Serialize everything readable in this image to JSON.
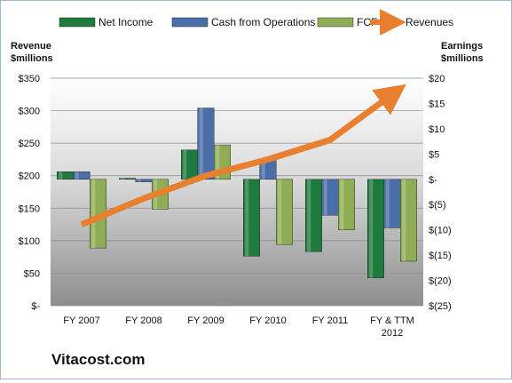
{
  "chart_data": {
    "type": "bar",
    "categories": [
      "FY 2007",
      "FY 2008",
      "FY 2009",
      "FY 2010",
      "FY 2011",
      "FY & TTM 2012"
    ],
    "series": [
      {
        "name": "Net Income",
        "axis": "right",
        "values": [
          1.5,
          0.2,
          5.8,
          -15.2,
          -14.3,
          -19.5
        ],
        "color": "#1f7a3e"
      },
      {
        "name": "Cash from Operations",
        "axis": "right",
        "values": [
          1.5,
          -0.5,
          14.1,
          3.9,
          -7.1,
          -9.6
        ],
        "color": "#4a6ea8"
      },
      {
        "name": "FCF",
        "axis": "right",
        "values": [
          -13.6,
          -5.9,
          6.8,
          -12.9,
          -10.0,
          -16.2
        ],
        "color": "#8fad55"
      },
      {
        "name": "Revenues",
        "axis": "left",
        "type": "line",
        "values": [
          125,
          165,
          200,
          225,
          255,
          325
        ],
        "color": "#e8802f"
      }
    ],
    "left_axis": {
      "label_line1": "Revenue",
      "label_line2": "$millions",
      "ylim": [
        0,
        350
      ],
      "ticks": [
        "$-",
        "$50",
        "$100",
        "$150",
        "$200",
        "$250",
        "$300",
        "$350"
      ]
    },
    "right_axis": {
      "label_line1": "Earnings",
      "label_line2": "$millions",
      "ylim": [
        -25,
        20
      ],
      "ticks": [
        "$(25)",
        "$(20)",
        "$(15)",
        "$(10)",
        "$(5)",
        "$-",
        "$5",
        "$10",
        "$15",
        "$20"
      ]
    },
    "category_labels": [
      [
        "FY 2007"
      ],
      [
        "FY 2008"
      ],
      [
        "FY 2009"
      ],
      [
        "FY 2010"
      ],
      [
        "FY 2011"
      ],
      [
        "FY & TTM",
        "2012"
      ]
    ],
    "legend": [
      "Net Income",
      "Cash from Operations",
      "FCF",
      "Revenues"
    ],
    "legend_position": "top",
    "grid": true
  },
  "brand": "Vitacost.com"
}
